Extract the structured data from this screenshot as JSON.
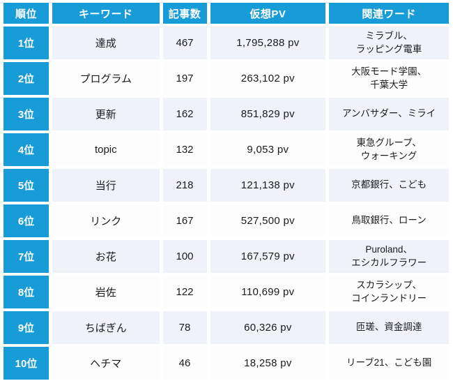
{
  "colors": {
    "header_blue": "#179cd8",
    "row_alt_bg": "#f0f2f9",
    "row_white_bg": "#fdfdfe",
    "header_text": "#ffffff",
    "body_text": "#1b1b1d"
  },
  "chart_data": {
    "type": "table",
    "title": "",
    "columns": [
      "順位",
      "キーワード",
      "記事数",
      "仮想PV",
      "関連ワード"
    ],
    "rows": [
      {
        "rank": "1位",
        "keyword": "達成",
        "articles": 467,
        "pv": "1,795,288 pv",
        "related": "ミラブル、\nラッピング電車"
      },
      {
        "rank": "2位",
        "keyword": "プログラム",
        "articles": 197,
        "pv": "263,102 pv",
        "related": "大阪モード学園、\n千葉大学"
      },
      {
        "rank": "3位",
        "keyword": "更新",
        "articles": 162,
        "pv": "851,829 pv",
        "related": "アンバサダー、ミライ"
      },
      {
        "rank": "4位",
        "keyword": "topic",
        "articles": 132,
        "pv": "9,053 pv",
        "related": "東急グループ、\nウォーキング"
      },
      {
        "rank": "5位",
        "keyword": "当行",
        "articles": 218,
        "pv": "121,138 pv",
        "related": "京都銀行、こども"
      },
      {
        "rank": "6位",
        "keyword": "リンク",
        "articles": 167,
        "pv": "527,500 pv",
        "related": "鳥取銀行、ローン"
      },
      {
        "rank": "7位",
        "keyword": "お花",
        "articles": 100,
        "pv": "167,579 pv",
        "related": "Puroland、\nエシカルフラワー"
      },
      {
        "rank": "8位",
        "keyword": "岩佐",
        "articles": 122,
        "pv": "110,699 pv",
        "related": "スカラシップ、\nコインランドリー"
      },
      {
        "rank": "9位",
        "keyword": "ちばぎん",
        "articles": 78,
        "pv": "60,326 pv",
        "related": "匝瑳、資金調達"
      },
      {
        "rank": "10位",
        "keyword": "ヘチマ",
        "articles": 46,
        "pv": "18,258 pv",
        "related": "リーブ21、こども園"
      }
    ]
  }
}
